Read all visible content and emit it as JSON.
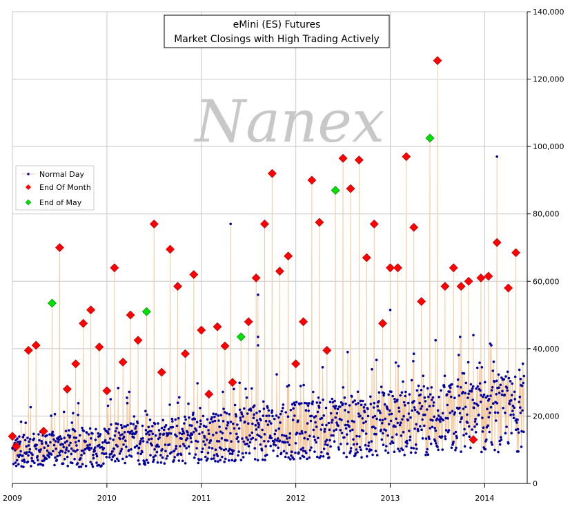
{
  "chart_data": {
    "type": "scatter",
    "title_lines": [
      "eMini (ES) Futures",
      "Market Closings with High Trading Actively"
    ],
    "watermark": "Nanex",
    "xlabel": "",
    "ylabel": "",
    "x_ticks": [
      "2009",
      "2010",
      "2011",
      "2012",
      "2013",
      "2014"
    ],
    "xlim": [
      2009.0,
      2014.45
    ],
    "ylim": [
      0,
      140000
    ],
    "y_ticks": [
      "0",
      "20,000",
      "40,000",
      "60,000",
      "80,000",
      "100,000",
      "120,000",
      "140,000"
    ],
    "y_tick_values": [
      0,
      20000,
      40000,
      60000,
      80000,
      100000,
      120000,
      140000
    ],
    "y_axis_side": "right",
    "grid": true,
    "legend_position": "left",
    "colors": {
      "normal": "#0000a0",
      "end_of_month": "#ff0000",
      "end_of_may": "#00e000",
      "line": "#f5c9a0",
      "grid": "#c8c8c8"
    },
    "series": [
      {
        "name": "Normal Day",
        "marker": "dot",
        "note_points": [
          [
            2011.31,
            77000
          ],
          [
            2011.6,
            56000
          ],
          [
            2011.6,
            43500
          ],
          [
            2011.6,
            41000
          ],
          [
            2012.55,
            39000
          ],
          [
            2012.92,
            27000
          ],
          [
            2013.0,
            51500
          ],
          [
            2013.25,
            38500
          ],
          [
            2013.48,
            42500
          ],
          [
            2013.88,
            44000
          ],
          [
            2013.74,
            43500
          ],
          [
            2014.13,
            97000
          ],
          [
            2014.07,
            41000
          ],
          [
            2014.38,
            31000
          ],
          [
            2009.35,
            14000
          ]
        ]
      },
      {
        "name": "End Of Month",
        "marker": "diamond",
        "points": [
          [
            2009.0,
            14000
          ],
          [
            2009.04,
            11000
          ],
          [
            2009.17,
            39500
          ],
          [
            2009.25,
            41000
          ],
          [
            2009.33,
            15500
          ],
          [
            2009.5,
            70000
          ],
          [
            2009.58,
            28000
          ],
          [
            2009.67,
            35500
          ],
          [
            2009.75,
            47500
          ],
          [
            2009.83,
            51500
          ],
          [
            2009.92,
            40500
          ],
          [
            2010.0,
            27500
          ],
          [
            2010.08,
            64000
          ],
          [
            2010.17,
            36000
          ],
          [
            2010.25,
            50000
          ],
          [
            2010.33,
            42500
          ],
          [
            2010.5,
            77000
          ],
          [
            2010.58,
            33000
          ],
          [
            2010.67,
            69500
          ],
          [
            2010.75,
            58500
          ],
          [
            2010.83,
            38500
          ],
          [
            2010.92,
            62000
          ],
          [
            2011.0,
            45500
          ],
          [
            2011.08,
            26500
          ],
          [
            2011.17,
            46500
          ],
          [
            2011.25,
            40800
          ],
          [
            2011.33,
            30000
          ],
          [
            2011.5,
            48000
          ],
          [
            2011.58,
            61000
          ],
          [
            2011.67,
            77000
          ],
          [
            2011.75,
            92000
          ],
          [
            2011.83,
            63000
          ],
          [
            2011.92,
            67500
          ],
          [
            2012.0,
            35500
          ],
          [
            2012.08,
            48000
          ],
          [
            2012.17,
            90000
          ],
          [
            2012.25,
            77500
          ],
          [
            2012.33,
            39500
          ],
          [
            2012.5,
            96500
          ],
          [
            2012.58,
            87500
          ],
          [
            2012.67,
            96000
          ],
          [
            2012.75,
            67000
          ],
          [
            2012.83,
            77000
          ],
          [
            2012.92,
            47500
          ],
          [
            2013.0,
            64000
          ],
          [
            2013.08,
            64000
          ],
          [
            2013.17,
            97000
          ],
          [
            2013.25,
            76000
          ],
          [
            2013.33,
            54000
          ],
          [
            2013.5,
            125500
          ],
          [
            2013.58,
            58500
          ],
          [
            2013.67,
            64000
          ],
          [
            2013.75,
            58500
          ],
          [
            2013.83,
            60000
          ],
          [
            2013.88,
            13000
          ],
          [
            2013.96,
            61000
          ],
          [
            2014.04,
            61500
          ],
          [
            2014.13,
            71500
          ],
          [
            2014.25,
            58000
          ],
          [
            2014.33,
            68500
          ]
        ]
      },
      {
        "name": "End of May",
        "marker": "diamond",
        "points": [
          [
            2009.42,
            53500
          ],
          [
            2010.42,
            51000
          ],
          [
            2011.42,
            43500
          ],
          [
            2012.42,
            87000
          ],
          [
            2013.42,
            102500
          ]
        ]
      }
    ]
  }
}
